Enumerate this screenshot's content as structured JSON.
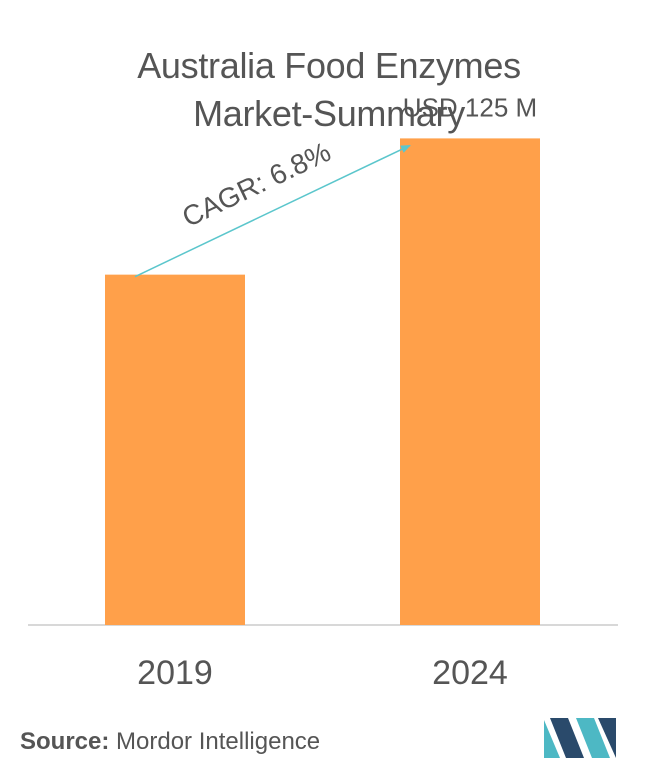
{
  "title_line1": "Australia Food Enzymes",
  "title_line2": "Market-Summary",
  "source_label": "Source:",
  "source_name": "Mordor Intelligence",
  "colors": {
    "bar": "#FFA04A",
    "arrow": "#5BC6CC",
    "axis": "#CCCCCC",
    "text": "#555555",
    "logo_dark": "#2A4A6B",
    "logo_light": "#4DB8C4"
  },
  "chart_data": {
    "type": "bar",
    "categories": [
      "2019",
      "2024"
    ],
    "values": [
      90,
      125
    ],
    "value_labels": [
      "",
      "USD 125 M"
    ],
    "annotation": "CAGR: 6.8%",
    "ylim": [
      0,
      140
    ],
    "grid": false,
    "legend": "none"
  }
}
